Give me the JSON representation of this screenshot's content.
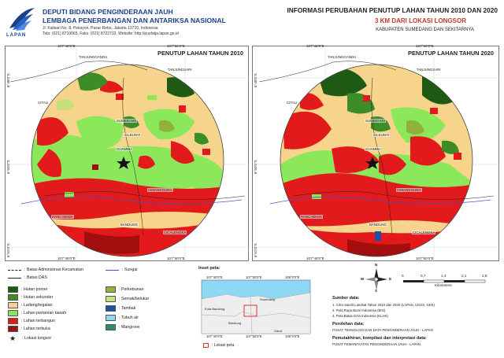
{
  "header": {
    "org_line1": "DEPUTI BIDANG PENGINDERAAN JAUH",
    "org_line2": "LEMBAGA PENERBANGAN DAN ANTARIKSA NASIONAL",
    "logo_text": "LAPAN",
    "address_line1": "Jl. Kalisari No. 8, Pekayon, Pasar Rebo, Jakarta 13710, Indonesia",
    "address_line2": "Telp. (021) 8710065, Faks. (021) 8722733, Website: http://pusfatja.lapan.go.id",
    "title": "INFORMASI PERUBAHAN PENUTUP LAHAN TAHUN 2010 DAN 2020",
    "subtitle": "3 KM DARI LOKASI LONGSOR",
    "region": "KABUPATEN SUMEDANG DAN SEKITARNYA"
  },
  "maps": {
    "left_title": "PENUTUP LAHAN TAHUN 2010",
    "right_title": "PENUTUP LAHAN TAHUN 2020",
    "coords": {
      "x1": "107°48'0\"E",
      "x2": "107°50'0\"E",
      "y1": "6°48'0\"S",
      "y2": "6°50'0\"S",
      "y3": "6°52'0\"S"
    },
    "places": {
      "tanjunggandu": "TANJUNGGANDU",
      "tanjungsari": "TANJUNGSARI",
      "citali": "CITALI",
      "sumedang": "SUMEDANG",
      "cileunyi": "CILEUNYI",
      "cijambu": "CIJAMBU",
      "cimanggung": "CIMANGGUNG",
      "rancaekek": "RANCAEKEK",
      "bandung": "BANDUNG",
      "cicalengka": "CICALENGKA"
    }
  },
  "legend": {
    "admin_boundary": ": Batas Administrasi Kecamatan",
    "das_boundary": ": Batas DAS",
    "river": ": Sungai",
    "landslide": ": Lokasi longsor",
    "classes": [
      {
        "label": ": Hutan primer",
        "color": "#1e5a14"
      },
      {
        "label": ": Hutan sekunder",
        "color": "#3c8c28"
      },
      {
        "label": ": Ladang/tegalan",
        "color": "#f7d48b"
      },
      {
        "label": ": Lahan pertanian basah",
        "color": "#8be85a"
      },
      {
        "label": ": Lahan terbangun",
        "color": "#e31a1c"
      },
      {
        "label": ": Lahan terbuka",
        "color": "#a30e0e"
      },
      {
        "label": ": Perkebunan",
        "color": "#8fb23c"
      },
      {
        "label": ": Semak/belukar",
        "color": "#c6e07a"
      },
      {
        "label": ": Tambak",
        "color": "#1f4fa8"
      },
      {
        "label": ": Tubuh air",
        "color": "#8fd8f5"
      },
      {
        "label": ": Mangrove",
        "color": "#2e8b70"
      }
    ]
  },
  "inset": {
    "title": "Inset peta:",
    "x_coords": [
      "107°40'0\"E",
      "107°50'0\"E",
      "108°0'0\"E"
    ],
    "y_coords": [
      "6°50'0\"S",
      "7°0'0\"S"
    ],
    "places": {
      "kota_bandung": "Kota Bandung",
      "sumedang": "Sumedang",
      "bandung": "Bandung",
      "garut": "Garut"
    },
    "legend_label": ": Lokasi peta"
  },
  "scale": {
    "ticks": [
      "0",
      "0,7",
      "1,4",
      "2,1",
      "2,8"
    ],
    "unit": "Kilometers"
  },
  "credits": {
    "source_heading": "Sumber data:",
    "sources": [
      "1. Citra Satelit Landsat Tahun 2010 dan 2020 (LAPAN, USGS, GEE)",
      "2. Peta Rupa Bumi Indonesia (BIG)",
      "3. Peta Batas DAS Indonesia (KLHK)"
    ],
    "data_acq_heading": "Perolehan data:",
    "data_acq": "PUSAT TEKNOLOGI DAN DATA PENGINDERAAN JAUH - LAPAN",
    "processing_heading": "Pemutakhiran, kompilasi dan interpretasi data:",
    "processing": "PUSAT PEMANFAATAN PENGINDERAAN JAUH - LAPAN"
  },
  "compass": {
    "n": "N",
    "s": "S",
    "e": "E",
    "w": "W"
  }
}
